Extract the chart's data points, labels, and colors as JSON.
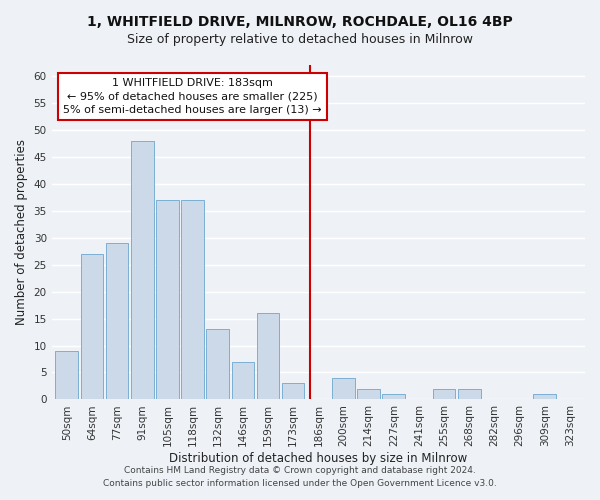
{
  "title": "1, WHITFIELD DRIVE, MILNROW, ROCHDALE, OL16 4BP",
  "subtitle": "Size of property relative to detached houses in Milnrow",
  "xlabel": "Distribution of detached houses by size in Milnrow",
  "ylabel": "Number of detached properties",
  "bar_color": "#ccd9e8",
  "bar_edge_color": "#7bafd4",
  "categories": [
    "50sqm",
    "64sqm",
    "77sqm",
    "91sqm",
    "105sqm",
    "118sqm",
    "132sqm",
    "146sqm",
    "159sqm",
    "173sqm",
    "186sqm",
    "200sqm",
    "214sqm",
    "227sqm",
    "241sqm",
    "255sqm",
    "268sqm",
    "282sqm",
    "296sqm",
    "309sqm",
    "323sqm"
  ],
  "values": [
    9,
    27,
    29,
    48,
    37,
    37,
    13,
    7,
    16,
    3,
    0,
    4,
    2,
    1,
    0,
    2,
    2,
    0,
    0,
    1,
    0
  ],
  "ylim": [
    0,
    62
  ],
  "yticks": [
    0,
    5,
    10,
    15,
    20,
    25,
    30,
    35,
    40,
    45,
    50,
    55,
    60
  ],
  "property_line_label": "1 WHITFIELD DRIVE: 183sqm",
  "annotation_line1": "← 95% of detached houses are smaller (225)",
  "annotation_line2": "5% of semi-detached houses are larger (13) →",
  "footer1": "Contains HM Land Registry data © Crown copyright and database right 2024.",
  "footer2": "Contains public sector information licensed under the Open Government Licence v3.0.",
  "background_color": "#eef2f7",
  "grid_color": "#ffffff",
  "title_fontsize": 10,
  "subtitle_fontsize": 9,
  "axis_label_fontsize": 8.5,
  "tick_fontsize": 7.5,
  "annotation_fontsize": 8,
  "footer_fontsize": 6.5
}
